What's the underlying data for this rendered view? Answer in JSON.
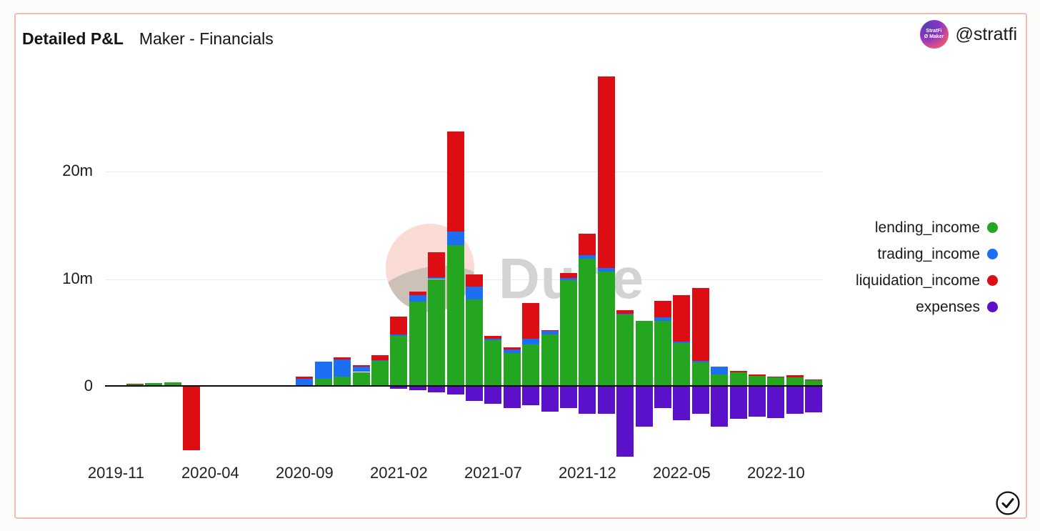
{
  "header": {
    "title": "Detailed P&L",
    "subtitle": "Maker - Financials",
    "account_handle": "@stratfi",
    "avatar_line1": "StratFi",
    "avatar_line2": "Ø Maker"
  },
  "watermark": {
    "text": "Dune"
  },
  "footer": {
    "check_icon": "circled-checkmark"
  },
  "chart_data": {
    "type": "bar",
    "stacked": true,
    "grid": true,
    "legend_position": "right",
    "unit": "millions",
    "ylim": [
      -8,
      30
    ],
    "y_ticks": [
      {
        "value": 0,
        "label": "0"
      },
      {
        "value": 10,
        "label": "10m"
      },
      {
        "value": 20,
        "label": "20m"
      }
    ],
    "x_tick_indices": [
      0,
      5,
      10,
      15,
      20,
      25,
      30,
      35
    ],
    "categories": [
      "2019-11",
      "2019-12",
      "2020-01",
      "2020-02",
      "2020-03",
      "2020-04",
      "2020-05",
      "2020-06",
      "2020-07",
      "2020-08",
      "2020-09",
      "2020-10",
      "2020-11",
      "2020-12",
      "2021-01",
      "2021-02",
      "2021-03",
      "2021-04",
      "2021-05",
      "2021-06",
      "2021-07",
      "2021-08",
      "2021-09",
      "2021-10",
      "2021-11",
      "2021-12",
      "2022-01",
      "2022-02",
      "2022-03",
      "2022-04",
      "2022-05",
      "2022-06",
      "2022-07",
      "2022-08",
      "2022-09",
      "2022-10",
      "2022-11",
      "2022-12"
    ],
    "series": [
      {
        "name": "lending_income",
        "color": "#24a621",
        "values": [
          0.1,
          0.2,
          0.3,
          0.4,
          0.1,
          0,
          0,
          0,
          0,
          0,
          0.05,
          0.7,
          0.9,
          1.35,
          2.4,
          4.7,
          7.9,
          10.0,
          13.2,
          8.1,
          4.3,
          3.1,
          3.9,
          4.9,
          9.9,
          11.9,
          10.7,
          6.7,
          6.1,
          6.1,
          4.1,
          2.3,
          1.1,
          1.3,
          1.0,
          0.85,
          0.85,
          0.6
        ]
      },
      {
        "name": "trading_income",
        "color": "#1c6ef2",
        "values": [
          0,
          0,
          0,
          0,
          0,
          0,
          0,
          0,
          0.1,
          0,
          0.7,
          1.6,
          1.6,
          0.55,
          0.05,
          0.15,
          0.65,
          0.2,
          1.25,
          1.2,
          0.2,
          0.35,
          0.6,
          0.3,
          0.2,
          0.3,
          0.35,
          0.05,
          0,
          0.4,
          0.1,
          0.1,
          0.75,
          0,
          0,
          0,
          0,
          0
        ]
      },
      {
        "name": "liquidation_income",
        "color": "#dc0e13",
        "values": [
          0.05,
          0.05,
          0,
          0,
          -5.9,
          0,
          0,
          0.1,
          0,
          0,
          0.2,
          0,
          0.2,
          0.1,
          0.45,
          1.65,
          0.3,
          2.3,
          9.3,
          1.1,
          0.25,
          0.2,
          3.3,
          0.05,
          0.45,
          2.0,
          17.8,
          0.35,
          0,
          1.5,
          4.3,
          6.8,
          0,
          0.15,
          0.15,
          0.05,
          0.2,
          0.05
        ]
      },
      {
        "name": "expenses",
        "color": "#5b11c9",
        "values": [
          0,
          0,
          0,
          0,
          0,
          0,
          0,
          0,
          0,
          0,
          0,
          0,
          0,
          0,
          0,
          -0.2,
          -0.3,
          -0.55,
          -0.7,
          -1.3,
          -1.6,
          -2.0,
          -1.7,
          -2.3,
          -2.0,
          -2.5,
          -2.5,
          -6.5,
          -3.7,
          -2.0,
          -3.1,
          -2.5,
          -3.7,
          -3.0,
          -2.8,
          -2.9,
          -2.5,
          -2.4
        ]
      }
    ]
  }
}
